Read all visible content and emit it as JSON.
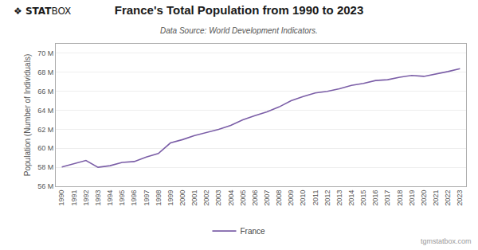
{
  "chart_data": {
    "type": "line",
    "title": "France's Total Population from 1990 to 2023",
    "subtitle": "Data Source: World Development Indicators.",
    "ylabel": "Population (Number of Individuals)",
    "annotations": [
      "❖",
      "STAT",
      "BOX",
      "tgmstatbox.com"
    ],
    "x": [
      1990,
      1991,
      1992,
      1993,
      1994,
      1995,
      1996,
      1997,
      1998,
      1999,
      2000,
      2001,
      2002,
      2003,
      2004,
      2005,
      2006,
      2007,
      2008,
      2009,
      2010,
      2011,
      2012,
      2013,
      2014,
      2015,
      2016,
      2017,
      2018,
      2019,
      2020,
      2021,
      2022,
      2023
    ],
    "series": [
      {
        "name": "France",
        "color": "#7b5ea7",
        "values": [
          58040000,
          58366000,
          58722000,
          58000000,
          58167000,
          58520000,
          58607000,
          59073000,
          59456000,
          60561000,
          60912000,
          61340000,
          61662000,
          61995000,
          62408000,
          63001000,
          63428000,
          63837000,
          64351000,
          65003000,
          65448000,
          65832000,
          66000000,
          66269000,
          66617000,
          66836000,
          67137000,
          67221000,
          67478000,
          67672000,
          67571000,
          67813000,
          68080000,
          68374000
        ]
      }
    ],
    "xlim": [
      1989.5,
      2023.5
    ],
    "xticks": [
      1990,
      1991,
      1992,
      1993,
      1994,
      1995,
      1996,
      1997,
      1998,
      1999,
      2000,
      2001,
      2002,
      2003,
      2004,
      2005,
      2006,
      2007,
      2008,
      2009,
      2010,
      2011,
      2012,
      2013,
      2014,
      2015,
      2016,
      2017,
      2018,
      2019,
      2020,
      2021,
      2022,
      2023
    ],
    "ylim": [
      56000000,
      71000000
    ],
    "yticks": [
      {
        "value": 56000000,
        "label": "56 M"
      },
      {
        "value": 58000000,
        "label": "58 M"
      },
      {
        "value": 60000000,
        "label": "60 M"
      },
      {
        "value": 62000000,
        "label": "62 M"
      },
      {
        "value": 64000000,
        "label": "64 M"
      },
      {
        "value": 66000000,
        "label": "66 M"
      },
      {
        "value": 68000000,
        "label": "68 M"
      },
      {
        "value": 70000000,
        "label": "70 M"
      }
    ],
    "grid": true,
    "legend": "bottom"
  }
}
